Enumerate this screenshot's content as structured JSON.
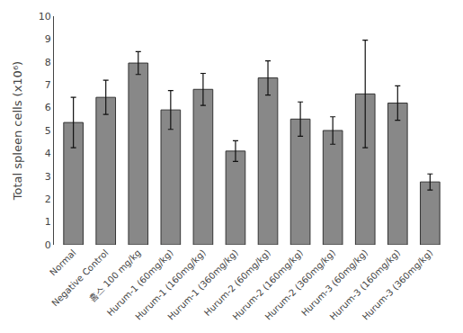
{
  "chart_data": {
    "type": "bar",
    "categories": [
      "Normal",
      "Negative Control",
      "홈스 100 mg/kg",
      "Hurum-1 (60mg/kg)",
      "Hurum-1 (160mg/kg)",
      "Hurum-1 (360mg/kg)",
      "Hurum-2 (60mg/kg)",
      "Hurum-2 (160mg/kg)",
      "Hurum-2 (360mg/kg)",
      "Hurum-3 (60mg/kg)",
      "Hurum-3 (160mg/kg)",
      "Hurum-3 (360mg/kg)"
    ],
    "values": [
      5.35,
      6.45,
      7.95,
      5.9,
      6.8,
      4.1,
      7.3,
      5.5,
      5.0,
      6.6,
      6.2,
      2.75
    ],
    "errors": [
      1.1,
      0.75,
      0.5,
      0.85,
      0.7,
      0.45,
      0.75,
      0.75,
      0.6,
      2.35,
      0.75,
      0.35
    ],
    "color": "#888888",
    "ylabel": "Total spleen cells (x10⁶)",
    "ylim": [
      0,
      10
    ],
    "yticks": [
      0,
      1,
      2,
      3,
      4,
      5,
      6,
      7,
      8,
      9,
      10
    ],
    "grid": false
  }
}
